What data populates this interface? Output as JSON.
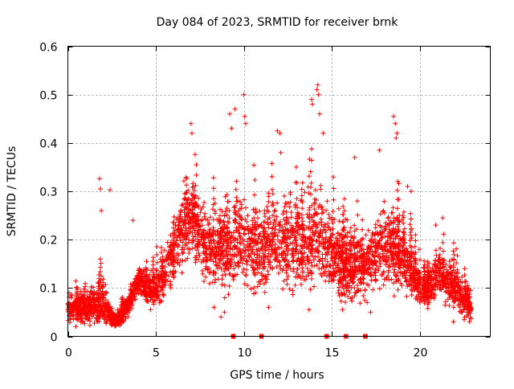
{
  "chart_data": {
    "type": "scatter",
    "title": "Day 084 of 2023, SRMTID for receiver brnk",
    "xlabel": "GPS time / hours",
    "ylabel": "SRMTID / TECUs",
    "xlim": [
      0,
      24
    ],
    "ylim": [
      0,
      0.6
    ],
    "x_ticks": [
      0,
      5,
      10,
      15,
      20
    ],
    "y_ticks": [
      0,
      0.1,
      0.2,
      0.3,
      0.4,
      0.5,
      0.6
    ],
    "x_tick_labels": [
      "0",
      "5",
      "10",
      "15",
      "20"
    ],
    "y_tick_labels": [
      "0",
      "0.1",
      "0.2",
      "0.3",
      "0.4",
      "0.5",
      "0.6"
    ],
    "grid": true,
    "marker": "+",
    "color": "#ff0000",
    "envelope": {
      "x": [
        0,
        0.5,
        1,
        1.5,
        2,
        2.5,
        3,
        3.5,
        4,
        4.5,
        5,
        5.5,
        6,
        6.5,
        7,
        7.5,
        8,
        8.5,
        9,
        9.5,
        10,
        10.5,
        11,
        11.5,
        12,
        12.5,
        13,
        13.5,
        14,
        14.5,
        15,
        15.5,
        16,
        16.5,
        17,
        17.5,
        18,
        18.5,
        19,
        19.5,
        20,
        20.5,
        21,
        21.5,
        22,
        22.5,
        22.9
      ],
      "mean": [
        0.06,
        0.055,
        0.06,
        0.07,
        0.07,
        0.035,
        0.04,
        0.07,
        0.115,
        0.1,
        0.1,
        0.13,
        0.18,
        0.22,
        0.25,
        0.21,
        0.18,
        0.19,
        0.18,
        0.2,
        0.2,
        0.19,
        0.17,
        0.2,
        0.2,
        0.19,
        0.2,
        0.19,
        0.22,
        0.2,
        0.17,
        0.15,
        0.14,
        0.15,
        0.15,
        0.17,
        0.19,
        0.18,
        0.16,
        0.14,
        0.1,
        0.1,
        0.13,
        0.12,
        0.1,
        0.08,
        0.06
      ],
      "spread": [
        0.03,
        0.03,
        0.035,
        0.04,
        0.05,
        0.015,
        0.02,
        0.03,
        0.03,
        0.035,
        0.04,
        0.05,
        0.07,
        0.08,
        0.08,
        0.08,
        0.08,
        0.09,
        0.1,
        0.1,
        0.1,
        0.09,
        0.08,
        0.09,
        0.1,
        0.1,
        0.1,
        0.1,
        0.11,
        0.1,
        0.09,
        0.08,
        0.07,
        0.07,
        0.07,
        0.08,
        0.09,
        0.09,
        0.08,
        0.06,
        0.04,
        0.04,
        0.05,
        0.05,
        0.05,
        0.04,
        0.03
      ],
      "points_per_hour": 150
    },
    "outliers": [
      [
        1.8,
        0.326
      ],
      [
        1.85,
        0.305
      ],
      [
        2.4,
        0.303
      ],
      [
        1.9,
        0.26
      ],
      [
        3.7,
        0.24
      ],
      [
        9.2,
        0.46
      ],
      [
        9.5,
        0.47
      ],
      [
        9.3,
        0.43
      ],
      [
        10.0,
        0.5
      ],
      [
        10.05,
        0.455
      ],
      [
        10.1,
        0.44
      ],
      [
        7.0,
        0.44
      ],
      [
        7.05,
        0.42
      ],
      [
        11.9,
        0.425
      ],
      [
        12.05,
        0.42
      ],
      [
        12.1,
        0.38
      ],
      [
        13.85,
        0.49
      ],
      [
        13.9,
        0.48
      ],
      [
        14.2,
        0.52
      ],
      [
        14.15,
        0.51
      ],
      [
        14.25,
        0.5
      ],
      [
        14.3,
        0.46
      ],
      [
        14.5,
        0.42
      ],
      [
        16.3,
        0.37
      ],
      [
        17.7,
        0.385
      ],
      [
        18.5,
        0.455
      ],
      [
        18.6,
        0.44
      ],
      [
        18.7,
        0.42
      ],
      [
        18.65,
        0.41
      ],
      [
        19.3,
        0.31
      ],
      [
        19.5,
        0.3
      ],
      [
        20.9,
        0.23
      ],
      [
        21.3,
        0.245
      ]
    ],
    "lowerpoints": [
      [
        8.3,
        0.06
      ],
      [
        8.7,
        0.04
      ],
      [
        8.9,
        0.05
      ],
      [
        11.4,
        0.06
      ],
      [
        13.7,
        0.055
      ],
      [
        17.2,
        0.05
      ],
      [
        17.0,
        0.07
      ],
      [
        21.9,
        0.03
      ],
      [
        22.4,
        0.05
      ]
    ],
    "zero_markers": [
      9.4,
      11.0,
      14.7,
      15.8,
      16.9
    ]
  }
}
